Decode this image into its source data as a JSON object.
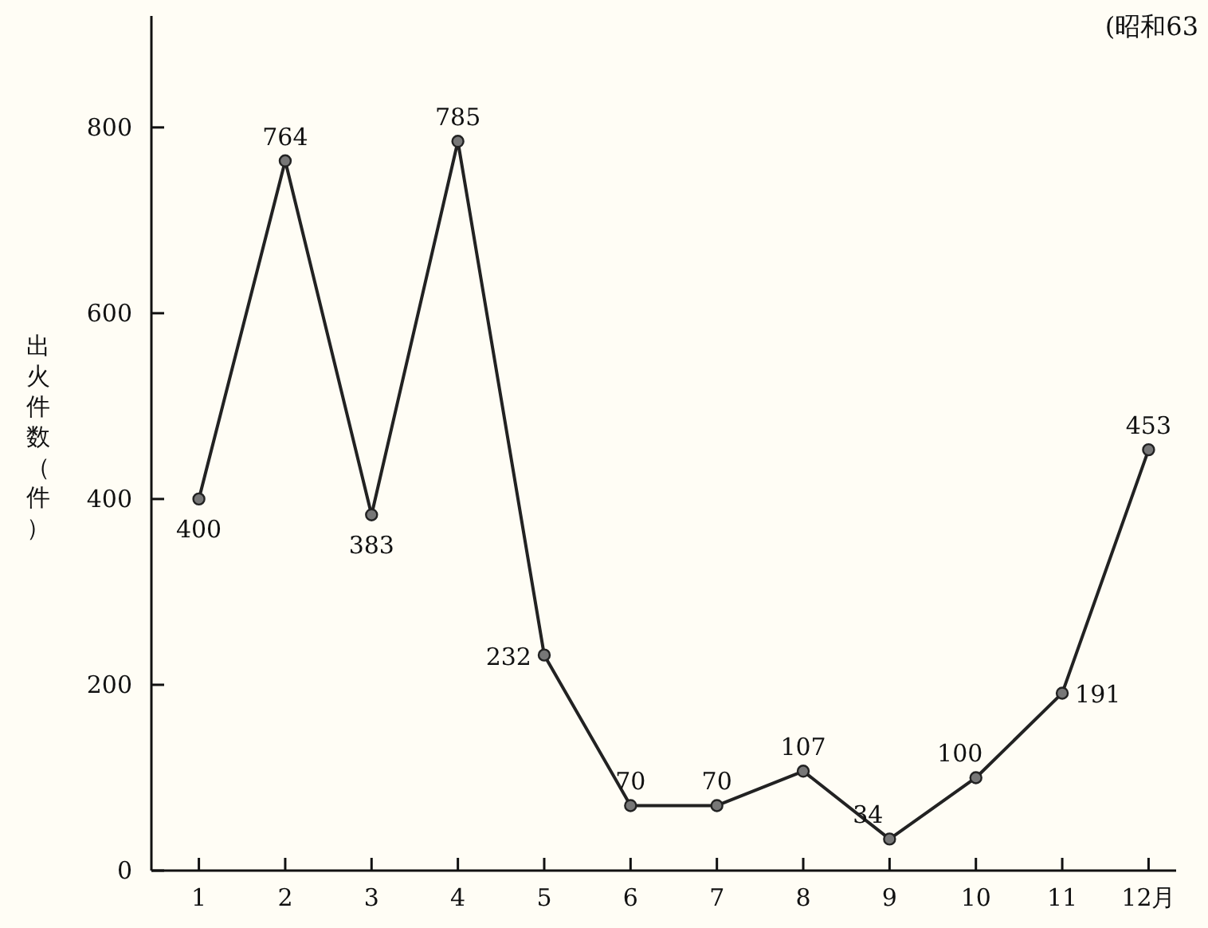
{
  "chart_data": {
    "type": "line",
    "ylabel": "出火件数（件）",
    "annotations": [
      "(昭和63"
    ],
    "categories": [
      "1",
      "2",
      "3",
      "4",
      "5",
      "6",
      "7",
      "8",
      "9",
      "10",
      "11",
      "12月"
    ],
    "series": [
      {
        "color": "#222222",
        "values": [
          400,
          764,
          383,
          785,
          232,
          70,
          70,
          107,
          34,
          100,
          191,
          453
        ]
      }
    ],
    "ylim": [
      0,
      920
    ],
    "yticks": [
      0,
      200,
      400,
      600,
      800
    ],
    "data_labels": true,
    "marker": "circle",
    "line_style": "solid",
    "grid": false
  }
}
